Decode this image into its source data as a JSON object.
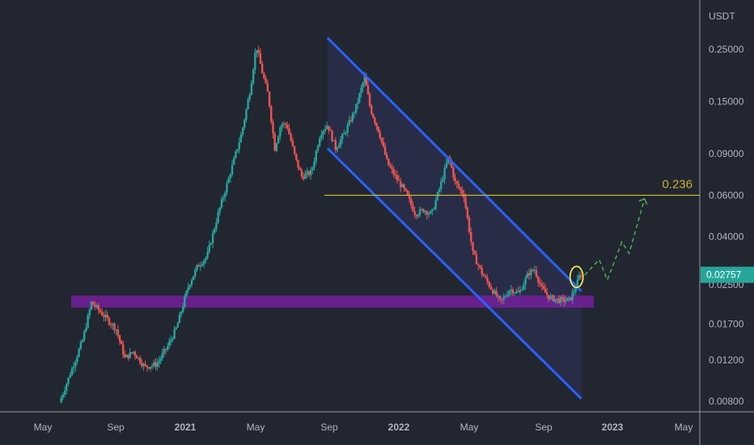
{
  "chart_data": {
    "type": "candlestick",
    "price_unit": "USDT",
    "scale": "log",
    "ylim": [
      0.0078,
      0.33
    ],
    "x_axis_labels": [
      "May",
      "Sep",
      "2021",
      "May",
      "Sep",
      "2022",
      "May",
      "Sep",
      "2023",
      "May"
    ],
    "y_tick_labels": [
      "0.25000",
      "0.15000",
      "0.09000",
      "0.06000",
      "0.04000",
      "0.02500",
      "0.01700",
      "0.01200",
      "0.00800"
    ],
    "y_tick_values": [
      0.25,
      0.15,
      0.09,
      0.06,
      0.04,
      0.025,
      0.017,
      0.012,
      0.008
    ],
    "bold_x_labels": [
      "2021",
      "2022",
      "2023"
    ],
    "current_price": "0.02757",
    "fib_level": {
      "label": "0.236",
      "price": 0.06
    },
    "support_zone": {
      "top": 0.0225,
      "bottom": 0.02
    },
    "channel": {
      "upper": [
        {
          "date": "2021-08-29",
          "price": 0.28
        },
        {
          "date": "2022-11-07",
          "price": 0.0235
        }
      ],
      "lower": [
        {
          "date": "2021-08-29",
          "price": 0.095
        },
        {
          "date": "2022-11-07",
          "price": 0.0082
        }
      ]
    },
    "projection_path": [
      0.0275,
      0.032,
      0.0262,
      0.038,
      0.034,
      0.058
    ],
    "key_prices": {
      "start": 0.008,
      "peak_2021": 0.26,
      "low_2021_sep": 0.011,
      "high_2021_nov": 0.19,
      "high_2022_mar": 0.088,
      "low_2022_jun": 0.021,
      "last": 0.02757
    },
    "colors": {
      "background": "#222631",
      "up_candle": "#26a69a",
      "down_candle": "#ef5350",
      "channel_line": "#2962ff",
      "channel_fill": "#2b2f4f",
      "support_zone": "#7b1fa2",
      "fib_line": "#c8b42a",
      "projection": "#4caf50",
      "highlight_circle": "#f2e94e",
      "price_tag": "#26a69a"
    }
  }
}
